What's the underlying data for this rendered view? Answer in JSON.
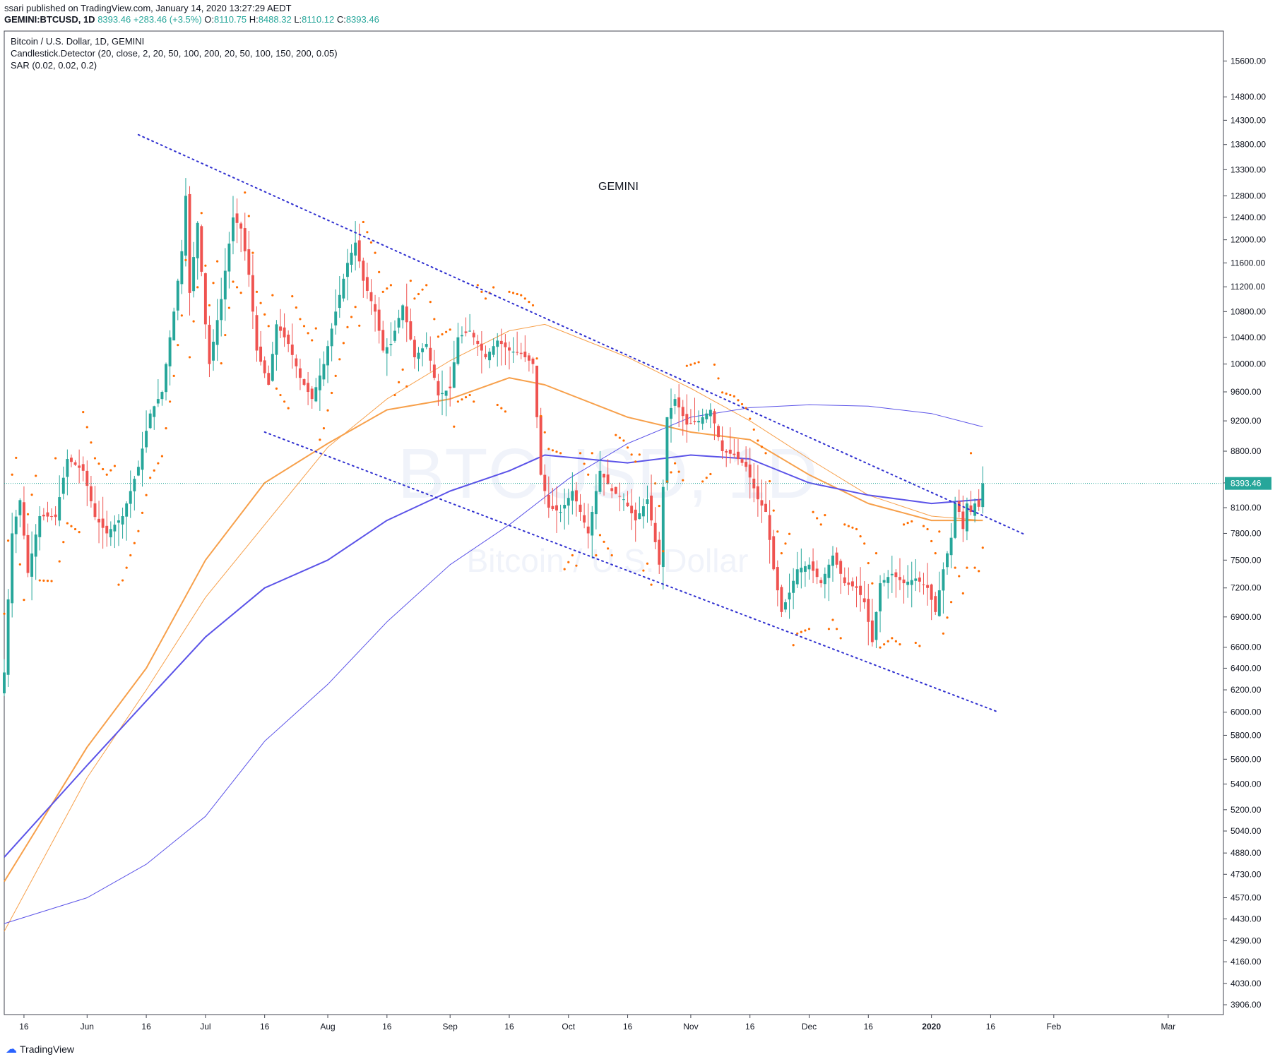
{
  "header": {
    "published": "ssari published on TradingView.com, January 14, 2020 13:27:29 AEDT",
    "symbol": "GEMINI:BTCUSD, 1D",
    "last": "8393.46",
    "change": "+283.46 (+3.5%)",
    "o_label": "O:",
    "o": "8110.75",
    "h_label": "H:",
    "h": "8488.32",
    "l_label": "L:",
    "l": "8110.12",
    "c_label": "C:",
    "c": "8393.46"
  },
  "indicators": [
    "Bitcoin / U.S. Dollar, 1D, GEMINI",
    "Candlestick.Detector (20, close, 2, 20, 50, 100, 200, 20, 50, 100, 150, 200, 0.05)",
    "SAR (0.02, 0.02, 0.2)"
  ],
  "annotation": "GEMINI",
  "watermark": {
    "ticker": "BTCUSD, 1D",
    "name": "Bitcoin / U.S. Dollar"
  },
  "footer": {
    "brand": "TradingView"
  },
  "colors": {
    "up": "#26a69a",
    "down": "#ef5350",
    "sar": "#ff6d00",
    "ema_orange": "#f7a04b",
    "ema_blue": "#5b53e8",
    "trendline": "#3030d0",
    "last_price": "#26a69a"
  },
  "chart_data": {
    "type": "candlestick",
    "title": "Bitcoin / U.S. Dollar, 1D, GEMINI",
    "y_scale": "log",
    "y_ticks": [
      15600,
      14800,
      14300,
      13800,
      13300,
      12800,
      12400,
      12000,
      11600,
      11200,
      10800,
      10400,
      10000,
      9600,
      9200,
      8800,
      8400,
      8100,
      7800,
      7500,
      7200,
      6900,
      6600,
      6400,
      6200,
      6000,
      5800,
      5600,
      5400,
      5200,
      5040,
      4880,
      4730,
      4570,
      4430,
      4290,
      4160,
      4030,
      3906
    ],
    "y_tick_labels": [
      "15600.00",
      "14800.00",
      "14300.00",
      "13800.00",
      "13300.00",
      "12800.00",
      "12400.00",
      "12000.00",
      "11600.00",
      "11200.00",
      "10800.00",
      "10400.00",
      "10000.00",
      "9600.00",
      "9200.00",
      "8800.00",
      "8400.00",
      "8100.00",
      "7800.00",
      "7500.00",
      "7200.00",
      "6900.00",
      "6600.00",
      "6400.00",
      "6200.00",
      "6000.00",
      "5800.00",
      "5600.00",
      "5400.00",
      "5200.00",
      "5040.00",
      "4880.00",
      "4730.00",
      "4570.00",
      "4430.00",
      "4290.00",
      "4160.00",
      "4030.00",
      "3906.00"
    ],
    "ylim": [
      3850,
      16300
    ],
    "x_range": [
      "2019-05-11",
      "2020-03-15"
    ],
    "x_ticks": [
      {
        "date": "2019-05-16",
        "label": "16"
      },
      {
        "date": "2019-06-01",
        "label": "Jun"
      },
      {
        "date": "2019-06-16",
        "label": "16"
      },
      {
        "date": "2019-07-01",
        "label": "Jul"
      },
      {
        "date": "2019-07-16",
        "label": "16"
      },
      {
        "date": "2019-08-01",
        "label": "Aug"
      },
      {
        "date": "2019-08-16",
        "label": "16"
      },
      {
        "date": "2019-09-01",
        "label": "Sep"
      },
      {
        "date": "2019-09-16",
        "label": "16"
      },
      {
        "date": "2019-10-01",
        "label": "Oct"
      },
      {
        "date": "2019-10-16",
        "label": "16"
      },
      {
        "date": "2019-11-01",
        "label": "Nov"
      },
      {
        "date": "2019-11-16",
        "label": "16"
      },
      {
        "date": "2019-12-01",
        "label": "Dec"
      },
      {
        "date": "2019-12-16",
        "label": "16"
      },
      {
        "date": "2020-01-01",
        "label": "2020"
      },
      {
        "date": "2020-01-16",
        "label": "16"
      },
      {
        "date": "2020-02-01",
        "label": "Feb"
      },
      {
        "date": "2020-03-01",
        "label": "Mar"
      }
    ],
    "last_price": {
      "value": 8393.46,
      "label": "8393.46"
    },
    "closes": [
      {
        "date": "2019-05-11",
        "close": 6360
      },
      {
        "date": "2019-05-13",
        "close": 7800
      },
      {
        "date": "2019-05-15",
        "close": 8190
      },
      {
        "date": "2019-05-17",
        "close": 7360
      },
      {
        "date": "2019-05-20",
        "close": 8000
      },
      {
        "date": "2019-05-24",
        "close": 7990
      },
      {
        "date": "2019-05-27",
        "close": 8700
      },
      {
        "date": "2019-05-31",
        "close": 8550
      },
      {
        "date": "2019-06-03",
        "close": 7990
      },
      {
        "date": "2019-06-06",
        "close": 7800
      },
      {
        "date": "2019-06-10",
        "close": 8000
      },
      {
        "date": "2019-06-14",
        "close": 8600
      },
      {
        "date": "2019-06-17",
        "close": 9300
      },
      {
        "date": "2019-06-20",
        "close": 9600
      },
      {
        "date": "2019-06-23",
        "close": 10800
      },
      {
        "date": "2019-06-25",
        "close": 11800
      },
      {
        "date": "2019-06-26",
        "close": 12800
      },
      {
        "date": "2019-06-27",
        "close": 11100
      },
      {
        "date": "2019-06-29",
        "close": 12300
      },
      {
        "date": "2019-07-01",
        "close": 10600
      },
      {
        "date": "2019-07-02",
        "close": 10000
      },
      {
        "date": "2019-07-05",
        "close": 11000
      },
      {
        "date": "2019-07-08",
        "close": 12400
      },
      {
        "date": "2019-07-10",
        "close": 12200
      },
      {
        "date": "2019-07-12",
        "close": 11400
      },
      {
        "date": "2019-07-14",
        "close": 10200
      },
      {
        "date": "2019-07-17",
        "close": 9700
      },
      {
        "date": "2019-07-19",
        "close": 10600
      },
      {
        "date": "2019-07-22",
        "close": 10300
      },
      {
        "date": "2019-07-25",
        "close": 9800
      },
      {
        "date": "2019-07-28",
        "close": 9500
      },
      {
        "date": "2019-07-31",
        "close": 10000
      },
      {
        "date": "2019-08-03",
        "close": 10800
      },
      {
        "date": "2019-08-06",
        "close": 11600
      },
      {
        "date": "2019-08-08",
        "close": 11950
      },
      {
        "date": "2019-08-10",
        "close": 11300
      },
      {
        "date": "2019-08-13",
        "close": 10800
      },
      {
        "date": "2019-08-15",
        "close": 10200
      },
      {
        "date": "2019-08-17",
        "close": 10300
      },
      {
        "date": "2019-08-20",
        "close": 10900
      },
      {
        "date": "2019-08-23",
        "close": 10100
      },
      {
        "date": "2019-08-26",
        "close": 10300
      },
      {
        "date": "2019-08-29",
        "close": 9550
      },
      {
        "date": "2019-09-01",
        "close": 9650
      },
      {
        "date": "2019-09-03",
        "close": 10400
      },
      {
        "date": "2019-09-06",
        "close": 10500
      },
      {
        "date": "2019-09-10",
        "close": 10100
      },
      {
        "date": "2019-09-13",
        "close": 10350
      },
      {
        "date": "2019-09-16",
        "close": 10200
      },
      {
        "date": "2019-09-19",
        "close": 10150
      },
      {
        "date": "2019-09-22",
        "close": 10000
      },
      {
        "date": "2019-09-24",
        "close": 8500
      },
      {
        "date": "2019-09-26",
        "close": 8100
      },
      {
        "date": "2019-09-29",
        "close": 8050
      },
      {
        "date": "2019-10-02",
        "close": 8300
      },
      {
        "date": "2019-10-06",
        "close": 7800
      },
      {
        "date": "2019-10-09",
        "close": 8550
      },
      {
        "date": "2019-10-12",
        "close": 8300
      },
      {
        "date": "2019-10-15",
        "close": 8200
      },
      {
        "date": "2019-10-18",
        "close": 7950
      },
      {
        "date": "2019-10-21",
        "close": 8200
      },
      {
        "date": "2019-10-24",
        "close": 7450
      },
      {
        "date": "2019-10-26",
        "close": 9250
      },
      {
        "date": "2019-10-28",
        "close": 9500
      },
      {
        "date": "2019-10-31",
        "close": 9150
      },
      {
        "date": "2019-11-03",
        "close": 9200
      },
      {
        "date": "2019-11-06",
        "close": 9350
      },
      {
        "date": "2019-11-09",
        "close": 8800
      },
      {
        "date": "2019-11-12",
        "close": 8750
      },
      {
        "date": "2019-11-15",
        "close": 8600
      },
      {
        "date": "2019-11-18",
        "close": 8200
      },
      {
        "date": "2019-11-20",
        "close": 8050
      },
      {
        "date": "2019-11-22",
        "close": 7400
      },
      {
        "date": "2019-11-24",
        "close": 6950
      },
      {
        "date": "2019-11-26",
        "close": 7150
      },
      {
        "date": "2019-11-28",
        "close": 7400
      },
      {
        "date": "2019-12-01",
        "close": 7450
      },
      {
        "date": "2019-12-04",
        "close": 7250
      },
      {
        "date": "2019-12-07",
        "close": 7550
      },
      {
        "date": "2019-12-10",
        "close": 7250
      },
      {
        "date": "2019-12-13",
        "close": 7200
      },
      {
        "date": "2019-12-15",
        "close": 7050
      },
      {
        "date": "2019-12-17",
        "close": 6650
      },
      {
        "date": "2019-12-19",
        "close": 7250
      },
      {
        "date": "2019-12-22",
        "close": 7350
      },
      {
        "date": "2019-12-25",
        "close": 7250
      },
      {
        "date": "2019-12-28",
        "close": 7300
      },
      {
        "date": "2019-12-31",
        "close": 7200
      },
      {
        "date": "2020-01-02",
        "close": 6950
      },
      {
        "date": "2020-01-04",
        "close": 7400
      },
      {
        "date": "2020-01-06",
        "close": 7750
      },
      {
        "date": "2020-01-07",
        "close": 8150
      },
      {
        "date": "2020-01-08",
        "close": 8050
      },
      {
        "date": "2020-01-09",
        "close": 7850
      },
      {
        "date": "2020-01-10",
        "close": 8150
      },
      {
        "date": "2020-01-11",
        "close": 8050
      },
      {
        "date": "2020-01-12",
        "close": 8150
      },
      {
        "date": "2020-01-13",
        "close": 8110
      },
      {
        "date": "2020-01-14",
        "close": 8393
      }
    ],
    "trendlines": [
      {
        "name": "upper",
        "points": [
          {
            "date": "2019-06-14",
            "price": 14000
          },
          {
            "date": "2020-01-25",
            "price": 7780
          }
        ]
      },
      {
        "name": "lower",
        "points": [
          {
            "date": "2019-07-16",
            "price": 9050
          },
          {
            "date": "2020-01-18",
            "price": 6000
          }
        ]
      }
    ],
    "moving_averages": [
      {
        "color": "#f7a04b",
        "width": 2,
        "points": [
          [
            "2019-05-11",
            4680
          ],
          [
            "2019-06-01",
            5700
          ],
          [
            "2019-06-16",
            6400
          ],
          [
            "2019-07-01",
            7500
          ],
          [
            "2019-07-16",
            8400
          ],
          [
            "2019-08-01",
            8900
          ],
          [
            "2019-08-16",
            9350
          ],
          [
            "2019-09-01",
            9500
          ],
          [
            "2019-09-16",
            9800
          ],
          [
            "2019-09-25",
            9700
          ],
          [
            "2019-10-16",
            9250
          ],
          [
            "2019-11-01",
            9050
          ],
          [
            "2019-11-16",
            8950
          ],
          [
            "2019-12-01",
            8500
          ],
          [
            "2019-12-16",
            8150
          ],
          [
            "2020-01-01",
            7950
          ],
          [
            "2020-01-14",
            7950
          ]
        ]
      },
      {
        "color": "#f7a04b",
        "width": 1,
        "points": [
          [
            "2019-05-11",
            4350
          ],
          [
            "2019-06-01",
            5450
          ],
          [
            "2019-06-16",
            6200
          ],
          [
            "2019-07-01",
            7100
          ],
          [
            "2019-07-16",
            7900
          ],
          [
            "2019-08-01",
            8850
          ],
          [
            "2019-08-16",
            9500
          ],
          [
            "2019-09-01",
            10050
          ],
          [
            "2019-09-16",
            10500
          ],
          [
            "2019-09-25",
            10600
          ],
          [
            "2019-10-16",
            10100
          ],
          [
            "2019-11-01",
            9650
          ],
          [
            "2019-11-16",
            9200
          ],
          [
            "2019-12-01",
            8700
          ],
          [
            "2019-12-16",
            8250
          ],
          [
            "2020-01-01",
            8000
          ],
          [
            "2020-01-14",
            7950
          ]
        ]
      },
      {
        "color": "#5b53e8",
        "width": 2,
        "points": [
          [
            "2019-05-11",
            4850
          ],
          [
            "2019-06-01",
            5550
          ],
          [
            "2019-06-16",
            6100
          ],
          [
            "2019-07-01",
            6700
          ],
          [
            "2019-07-16",
            7200
          ],
          [
            "2019-08-01",
            7500
          ],
          [
            "2019-08-16",
            7950
          ],
          [
            "2019-09-01",
            8300
          ],
          [
            "2019-09-16",
            8550
          ],
          [
            "2019-09-25",
            8750
          ],
          [
            "2019-10-16",
            8650
          ],
          [
            "2019-11-01",
            8750
          ],
          [
            "2019-11-16",
            8700
          ],
          [
            "2019-12-01",
            8400
          ],
          [
            "2019-12-16",
            8250
          ],
          [
            "2020-01-01",
            8150
          ],
          [
            "2020-01-14",
            8200
          ]
        ]
      },
      {
        "color": "#5b53e8",
        "width": 1,
        "points": [
          [
            "2019-05-11",
            4400
          ],
          [
            "2019-06-01",
            4570
          ],
          [
            "2019-06-16",
            4800
          ],
          [
            "2019-07-01",
            5150
          ],
          [
            "2019-07-16",
            5750
          ],
          [
            "2019-08-01",
            6250
          ],
          [
            "2019-08-16",
            6850
          ],
          [
            "2019-09-01",
            7450
          ],
          [
            "2019-09-16",
            7900
          ],
          [
            "2019-10-01",
            8450
          ],
          [
            "2019-10-16",
            8900
          ],
          [
            "2019-11-01",
            9250
          ],
          [
            "2019-11-16",
            9380
          ],
          [
            "2019-12-01",
            9420
          ],
          [
            "2019-12-16",
            9400
          ],
          [
            "2020-01-01",
            9300
          ],
          [
            "2020-01-14",
            9120
          ]
        ]
      }
    ]
  }
}
